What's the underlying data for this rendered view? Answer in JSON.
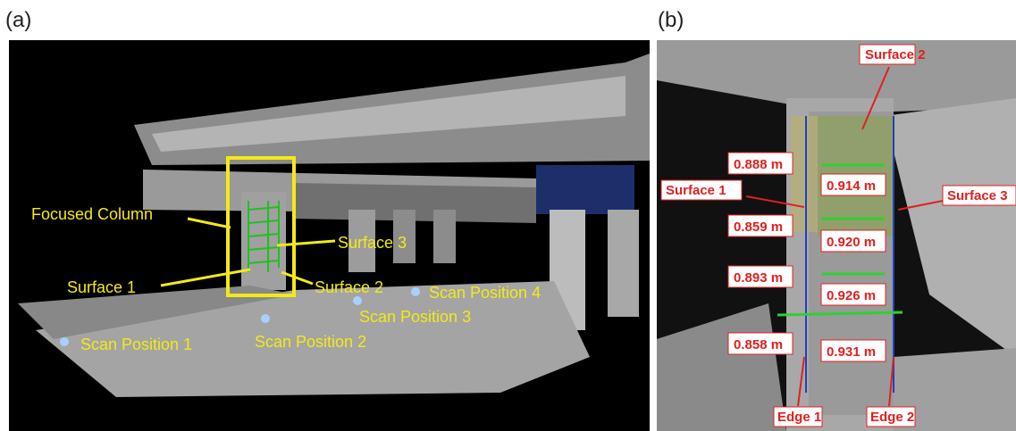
{
  "panels": [
    {
      "label": "(a)",
      "annotations": {
        "focused_column": "Focused Column",
        "surface_1": "Surface 1",
        "surface_2": "Surface 2",
        "surface_3": "Surface 3",
        "scan_positions": [
          "Scan Position 1",
          "Scan Position 2",
          "Scan Position 3",
          "Scan Position 4"
        ]
      }
    },
    {
      "label": "(b)",
      "annotations": {
        "surface_1": "Surface 1",
        "surface_2": "Surface 2",
        "surface_3": "Surface 3",
        "edge_1": "Edge 1",
        "edge_2": "Edge 2"
      },
      "measurements_left": [
        "0.888 m",
        "0.859 m",
        "0.893 m",
        "0.858 m"
      ],
      "measurements_right": [
        "0.914 m",
        "0.920 m",
        "0.926 m",
        "0.931 m"
      ]
    }
  ]
}
